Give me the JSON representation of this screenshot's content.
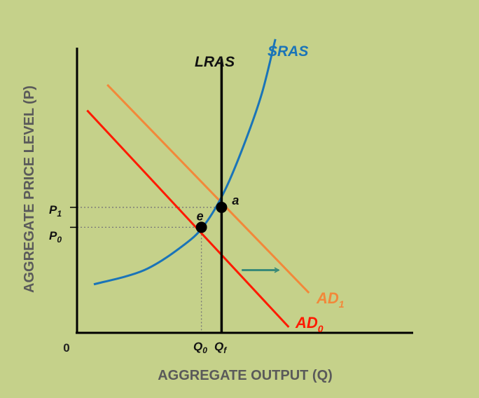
{
  "chart_data": {
    "type": "line",
    "title": "",
    "xlabel": "AGGREGATE OUTPUT (Q)",
    "ylabel": "AGGREGATE PRICE LEVEL (P)",
    "origin_label": "0",
    "grid": false,
    "series": [
      {
        "name": "SRAS",
        "color": "#1a74b8",
        "points": [
          [
            0.05,
            0.17
          ],
          [
            0.2,
            0.22
          ],
          [
            0.32,
            0.31
          ],
          [
            0.38,
            0.38
          ],
          [
            0.44,
            0.5
          ],
          [
            0.5,
            0.67
          ],
          [
            0.55,
            0.84
          ],
          [
            0.59,
            1.03
          ]
        ]
      },
      {
        "name": "LRAS",
        "color": "#000000",
        "points": [
          [
            0.43,
            0
          ],
          [
            0.43,
            0.96
          ]
        ]
      },
      {
        "name": "AD0",
        "color": "#ff1a00",
        "points": [
          [
            0.03,
            0.78
          ],
          [
            0.63,
            0.02
          ]
        ]
      },
      {
        "name": "AD1",
        "color": "#f2883a",
        "points": [
          [
            0.09,
            0.87
          ],
          [
            0.69,
            0.14
          ]
        ]
      }
    ],
    "labels": {
      "sras": "SRAS",
      "lras": "LRAS",
      "ad0_main": "AD",
      "ad0_sub": "0",
      "ad1_main": "AD",
      "ad1_sub": "1",
      "p1_main": "P",
      "p1_sub": "1",
      "p0_main": "P",
      "p0_sub": "0",
      "q0_main": "Q",
      "q0_sub": "0",
      "qf_main": "Q",
      "qf_sub": "f"
    },
    "equilibria": [
      {
        "label": "e",
        "x": 0.37,
        "y": 0.37
      },
      {
        "label": "a",
        "x": 0.43,
        "y": 0.44
      }
    ],
    "shift_arrow": {
      "color": "#3a8a78",
      "from": [
        0.49,
        0.22
      ],
      "to": [
        0.6,
        0.22
      ]
    }
  }
}
